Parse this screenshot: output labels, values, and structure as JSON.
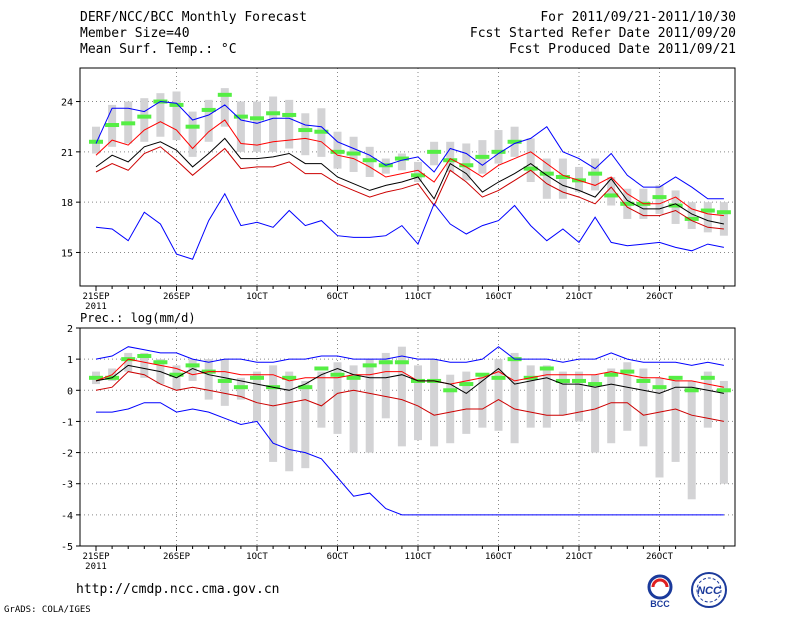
{
  "header": {
    "title": "DERF/NCC/BCC Monthly Forecast",
    "member": "Member Size=40",
    "variable": "Mean Surf. Temp.: °C",
    "period": "For 2011/09/21-2011/10/30",
    "started": "Fcst Started Refer Date 2011/09/20",
    "produced": "Fcst Produced Date 2011/09/21"
  },
  "footer": {
    "url": "http://cmdp.ncc.cma.gov.cn",
    "credit": "GrADS: COLA/IGES",
    "logo1_text": "BCC",
    "logo2_text": "NCC"
  },
  "colors": {
    "max": "#0000ff",
    "upper": "#ff0000",
    "mean": "#000000",
    "lower": "#cc0000",
    "box": "#d3d3d5",
    "median": "#55ee44",
    "grid": "#888888"
  },
  "chart_data": [
    {
      "type": "line",
      "title": "Mean Surf. Temp.: °C",
      "ylim": [
        13,
        26
      ],
      "yticks": [
        15,
        18,
        21,
        24
      ],
      "grid": true,
      "xtick_labels": [
        "21SEP",
        "26SEP",
        "1OCT",
        "6OCT",
        "11OCT",
        "16OCT",
        "21OCT",
        "26OCT"
      ],
      "x_start_label": "2011",
      "days": 40,
      "series": [
        {
          "name": "max",
          "values": [
            21.5,
            23.6,
            23.6,
            23.4,
            24.0,
            23.9,
            22.9,
            23.2,
            23.8,
            22.9,
            22.7,
            23.0,
            23.0,
            22.6,
            22.5,
            21.6,
            21.2,
            20.8,
            20.2,
            20.5,
            20.7,
            19.8,
            21.2,
            20.9,
            20.2,
            20.9,
            21.5,
            21.8,
            22.5,
            21.0,
            20.6,
            20.0,
            20.9,
            19.6,
            18.9,
            18.9,
            19.5,
            18.9,
            18.2,
            18.2
          ]
        },
        {
          "name": "upper",
          "values": [
            20.8,
            21.7,
            21.4,
            22.3,
            22.8,
            22.3,
            21.2,
            22.2,
            22.9,
            21.5,
            21.4,
            21.6,
            21.7,
            21.8,
            21.6,
            20.8,
            20.6,
            20.1,
            19.5,
            19.7,
            19.9,
            19.2,
            20.6,
            20.1,
            19.5,
            20.2,
            20.6,
            21.0,
            20.3,
            19.6,
            19.3,
            19.0,
            19.5,
            18.5,
            17.9,
            17.9,
            18.3,
            17.6,
            17.3,
            17.2
          ]
        },
        {
          "name": "mean",
          "values": [
            20.1,
            20.8,
            20.4,
            21.3,
            21.6,
            21.1,
            20.1,
            20.9,
            21.8,
            20.6,
            20.6,
            20.7,
            20.9,
            20.3,
            20.3,
            19.5,
            19.1,
            18.7,
            19.0,
            19.2,
            19.5,
            18.2,
            20.3,
            19.7,
            18.6,
            19.2,
            19.7,
            20.3,
            19.6,
            19.0,
            18.7,
            18.3,
            19.4,
            18.1,
            17.6,
            17.6,
            17.9,
            17.3,
            16.9,
            16.7
          ]
        },
        {
          "name": "lower",
          "values": [
            19.8,
            20.3,
            19.9,
            20.9,
            21.3,
            20.5,
            19.6,
            20.4,
            21.2,
            20.0,
            20.1,
            20.1,
            20.4,
            19.7,
            19.7,
            19.1,
            18.7,
            18.3,
            18.6,
            18.8,
            19.1,
            17.8,
            19.9,
            19.2,
            18.3,
            18.7,
            19.3,
            19.9,
            19.1,
            18.6,
            18.3,
            17.9,
            18.9,
            17.7,
            17.2,
            17.2,
            17.5,
            16.9,
            16.5,
            16.4
          ]
        },
        {
          "name": "min",
          "values": [
            16.5,
            16.4,
            15.7,
            17.4,
            16.7,
            14.9,
            14.6,
            16.9,
            18.5,
            16.6,
            16.8,
            16.5,
            17.5,
            16.6,
            16.9,
            16.0,
            15.9,
            15.9,
            16.0,
            16.6,
            15.5,
            17.9,
            16.7,
            16.1,
            16.6,
            16.9,
            17.8,
            16.6,
            15.7,
            16.4,
            15.6,
            17.1,
            15.6,
            15.4,
            15.5,
            15.6,
            15.3,
            15.1,
            15.5,
            15.3
          ]
        }
      ],
      "boxes": [
        {
          "day": 1,
          "low": 20.9,
          "high": 22.5,
          "median": 21.6
        },
        {
          "day": 2,
          "low": 21.3,
          "high": 23.8,
          "median": 22.6
        },
        {
          "day": 3,
          "low": 21.5,
          "high": 24.0,
          "median": 22.7
        },
        {
          "day": 4,
          "low": 21.6,
          "high": 24.2,
          "median": 23.1
        },
        {
          "day": 5,
          "low": 21.9,
          "high": 24.5,
          "median": 24.0
        },
        {
          "day": 6,
          "low": 21.7,
          "high": 24.6,
          "median": 23.8
        },
        {
          "day": 7,
          "low": 20.7,
          "high": 23.4,
          "median": 22.5
        },
        {
          "day": 8,
          "low": 21.6,
          "high": 24.1,
          "median": 23.5
        },
        {
          "day": 9,
          "low": 22.5,
          "high": 24.8,
          "median": 24.4
        },
        {
          "day": 10,
          "low": 21.0,
          "high": 24.0,
          "median": 23.1
        },
        {
          "day": 11,
          "low": 21.0,
          "high": 24.0,
          "median": 23.0
        },
        {
          "day": 12,
          "low": 21.0,
          "high": 24.3,
          "median": 23.3
        },
        {
          "day": 13,
          "low": 21.2,
          "high": 24.1,
          "median": 23.2
        },
        {
          "day": 14,
          "low": 20.8,
          "high": 23.3,
          "median": 22.3
        },
        {
          "day": 15,
          "low": 20.7,
          "high": 23.6,
          "median": 22.2
        },
        {
          "day": 16,
          "low": 20.0,
          "high": 22.2,
          "median": 21.0
        },
        {
          "day": 17,
          "low": 19.8,
          "high": 21.9,
          "median": 20.9
        },
        {
          "day": 18,
          "low": 19.5,
          "high": 21.3,
          "median": 20.5
        },
        {
          "day": 19,
          "low": 19.7,
          "high": 20.6,
          "median": 20.2
        },
        {
          "day": 20,
          "low": 19.9,
          "high": 20.9,
          "median": 20.6
        },
        {
          "day": 21,
          "low": 19.2,
          "high": 20.4,
          "median": 19.6
        },
        {
          "day": 22,
          "low": 20.2,
          "high": 21.6,
          "median": 21.0
        },
        {
          "day": 23,
          "low": 19.8,
          "high": 21.6,
          "median": 20.5
        },
        {
          "day": 24,
          "low": 19.3,
          "high": 21.5,
          "median": 20.2
        },
        {
          "day": 25,
          "low": 19.7,
          "high": 21.7,
          "median": 20.7
        },
        {
          "day": 26,
          "low": 20.3,
          "high": 22.3,
          "median": 21.0
        },
        {
          "day": 27,
          "low": 20.7,
          "high": 22.5,
          "median": 21.6
        },
        {
          "day": 28,
          "low": 19.2,
          "high": 21.8,
          "median": 20.0
        },
        {
          "day": 29,
          "low": 18.2,
          "high": 20.6,
          "median": 19.7
        },
        {
          "day": 30,
          "low": 18.2,
          "high": 20.6,
          "median": 19.5
        },
        {
          "day": 31,
          "low": 18.6,
          "high": 20.1,
          "median": 19.3
        },
        {
          "day": 32,
          "low": 18.7,
          "high": 20.6,
          "median": 19.7
        },
        {
          "day": 33,
          "low": 17.8,
          "high": 19.5,
          "median": 18.4
        },
        {
          "day": 34,
          "low": 17.0,
          "high": 18.8,
          "median": 17.9
        },
        {
          "day": 35,
          "low": 17.0,
          "high": 18.8,
          "median": 17.9
        },
        {
          "day": 36,
          "low": 17.3,
          "high": 19.0,
          "median": 18.3
        },
        {
          "day": 37,
          "low": 16.7,
          "high": 18.7,
          "median": 17.8
        },
        {
          "day": 38,
          "low": 16.4,
          "high": 18.0,
          "median": 17.0
        },
        {
          "day": 39,
          "low": 16.2,
          "high": 18.0,
          "median": 17.5
        },
        {
          "day": 40,
          "low": 16.0,
          "high": 18.0,
          "median": 17.4
        }
      ]
    },
    {
      "type": "line",
      "title": "Prec.: log(mm/d)",
      "ylim": [
        -5,
        2
      ],
      "yticks": [
        -5,
        -4,
        -3,
        -2,
        -1,
        0,
        1,
        2
      ],
      "grid": true,
      "xtick_labels": [
        "21SEP",
        "26SEP",
        "1OCT",
        "6OCT",
        "11OCT",
        "16OCT",
        "21OCT",
        "26OCT"
      ],
      "x_start_label": "2011",
      "days": 40,
      "series": [
        {
          "name": "max",
          "values": [
            1.0,
            1.1,
            1.4,
            1.3,
            1.2,
            1.2,
            1.0,
            0.9,
            1.0,
            1.0,
            0.9,
            0.9,
            1.0,
            1.0,
            1.1,
            1.1,
            1.0,
            1.0,
            1.0,
            1.1,
            1.0,
            1.0,
            0.9,
            0.9,
            1.0,
            1.4,
            1.0,
            1.0,
            1.0,
            0.9,
            1.0,
            1.0,
            1.2,
            1.0,
            0.9,
            0.9,
            0.9,
            0.8,
            0.9,
            0.8
          ]
        },
        {
          "name": "upper",
          "values": [
            0.3,
            0.5,
            1.0,
            0.9,
            0.8,
            0.7,
            0.5,
            0.6,
            0.6,
            0.5,
            0.5,
            0.5,
            0.3,
            0.4,
            0.4,
            0.4,
            0.5,
            0.5,
            0.6,
            0.6,
            0.3,
            0.3,
            0.2,
            0.3,
            0.4,
            0.6,
            0.3,
            0.4,
            0.5,
            0.5,
            0.5,
            0.5,
            0.6,
            0.5,
            0.4,
            0.4,
            0.3,
            0.3,
            0.2,
            0.1
          ]
        },
        {
          "name": "mean",
          "values": [
            0.3,
            0.4,
            0.8,
            0.7,
            0.6,
            0.4,
            0.7,
            0.5,
            0.4,
            0.3,
            0.2,
            0.1,
            0.0,
            0.2,
            0.5,
            0.7,
            0.5,
            0.4,
            0.4,
            0.5,
            0.3,
            0.3,
            0.2,
            -0.1,
            0.3,
            0.7,
            0.2,
            0.3,
            0.4,
            0.2,
            0.2,
            0.1,
            0.2,
            0.1,
            0.0,
            -0.1,
            0.1,
            0.1,
            0.0,
            -0.1
          ]
        },
        {
          "name": "lower",
          "values": [
            0.0,
            0.1,
            0.6,
            0.5,
            0.2,
            0.0,
            0.1,
            0.0,
            -0.1,
            -0.2,
            -0.4,
            -0.5,
            -0.4,
            -0.3,
            -0.5,
            -0.1,
            0.0,
            -0.1,
            -0.2,
            -0.3,
            -0.5,
            -0.8,
            -0.7,
            -0.6,
            -0.6,
            -0.3,
            -0.6,
            -0.7,
            -0.8,
            -0.8,
            -0.7,
            -0.6,
            -0.4,
            -0.4,
            -0.8,
            -0.7,
            -0.6,
            -0.8,
            -0.9,
            -1.0
          ]
        },
        {
          "name": "min",
          "values": [
            -0.7,
            -0.7,
            -0.6,
            -0.4,
            -0.4,
            -0.7,
            -0.6,
            -0.7,
            -0.9,
            -1.1,
            -1.0,
            -1.7,
            -1.9,
            -2.0,
            -2.2,
            -2.8,
            -3.4,
            -3.3,
            -3.8,
            -4.0,
            -4.0,
            -4.0,
            -4.0,
            -4.0,
            -4.0,
            -4.0,
            -4.0,
            -4.0,
            -4.0,
            -4.0,
            -4.0,
            -4.0,
            -4.0,
            -4.0,
            -4.0,
            -4.0,
            -4.0,
            -4.0,
            -4.0,
            -4.0
          ]
        }
      ],
      "boxes": [
        {
          "day": 1,
          "low": 0.2,
          "high": 0.6,
          "median": 0.4
        },
        {
          "day": 2,
          "low": 0.3,
          "high": 0.7,
          "median": 0.4
        },
        {
          "day": 3,
          "low": 0.6,
          "high": 1.2,
          "median": 1.0
        },
        {
          "day": 4,
          "low": 0.4,
          "high": 1.2,
          "median": 1.1
        },
        {
          "day": 5,
          "low": 0.2,
          "high": 1.0,
          "median": 0.9
        },
        {
          "day": 6,
          "low": 0.0,
          "high": 0.8,
          "median": 0.5
        },
        {
          "day": 7,
          "low": 0.3,
          "high": 1.0,
          "median": 0.8
        },
        {
          "day": 8,
          "low": -0.3,
          "high": 1.0,
          "median": 0.6
        },
        {
          "day": 9,
          "low": -0.5,
          "high": 1.0,
          "median": 0.3
        },
        {
          "day": 10,
          "low": -0.3,
          "high": 0.4,
          "median": 0.1
        },
        {
          "day": 11,
          "low": -1.0,
          "high": 0.6,
          "median": 0.4
        },
        {
          "day": 12,
          "low": -2.3,
          "high": 0.8,
          "median": 0.1
        },
        {
          "day": 13,
          "low": -2.6,
          "high": 0.6,
          "median": 0.4
        },
        {
          "day": 14,
          "low": -2.5,
          "high": 0.3,
          "median": 0.1
        },
        {
          "day": 15,
          "low": -1.2,
          "high": 0.6,
          "median": 0.7
        },
        {
          "day": 16,
          "low": -1.4,
          "high": 0.9,
          "median": 0.5
        },
        {
          "day": 17,
          "low": -2.0,
          "high": 0.8,
          "median": 0.4
        },
        {
          "day": 18,
          "low": -2.0,
          "high": 1.0,
          "median": 0.8
        },
        {
          "day": 19,
          "low": -0.9,
          "high": 1.2,
          "median": 0.9
        },
        {
          "day": 20,
          "low": -1.8,
          "high": 1.4,
          "median": 0.9
        },
        {
          "day": 21,
          "low": -1.6,
          "high": 0.8,
          "median": 0.3
        },
        {
          "day": 22,
          "low": -1.8,
          "high": 1.0,
          "median": 0.3
        },
        {
          "day": 23,
          "low": -1.7,
          "high": 0.5,
          "median": 0.0
        },
        {
          "day": 24,
          "low": -1.4,
          "high": 0.6,
          "median": 0.2
        },
        {
          "day": 25,
          "low": -1.2,
          "high": 0.5,
          "median": 0.5
        },
        {
          "day": 26,
          "low": -1.3,
          "high": 1.0,
          "median": 0.4
        },
        {
          "day": 27,
          "low": -1.7,
          "high": 1.2,
          "median": 1.0
        },
        {
          "day": 28,
          "low": -1.2,
          "high": 0.8,
          "median": 0.4
        },
        {
          "day": 29,
          "low": -1.2,
          "high": 0.8,
          "median": 0.7
        },
        {
          "day": 30,
          "low": -0.8,
          "high": 0.6,
          "median": 0.3
        },
        {
          "day": 31,
          "low": -1.0,
          "high": 0.6,
          "median": 0.3
        },
        {
          "day": 32,
          "low": -2.0,
          "high": 0.5,
          "median": 0.2
        },
        {
          "day": 33,
          "low": -1.7,
          "high": 0.7,
          "median": 0.5
        },
        {
          "day": 34,
          "low": -1.3,
          "high": 0.9,
          "median": 0.6
        },
        {
          "day": 35,
          "low": -1.8,
          "high": 0.7,
          "median": 0.3
        },
        {
          "day": 36,
          "low": -2.8,
          "high": 0.4,
          "median": 0.1
        },
        {
          "day": 37,
          "low": -2.3,
          "high": 0.4,
          "median": 0.4
        },
        {
          "day": 38,
          "low": -3.5,
          "high": 0.3,
          "median": 0.0
        },
        {
          "day": 39,
          "low": -1.2,
          "high": 0.6,
          "median": 0.4
        },
        {
          "day": 40,
          "low": -3.0,
          "high": 0.3,
          "median": 0.0
        }
      ]
    }
  ]
}
